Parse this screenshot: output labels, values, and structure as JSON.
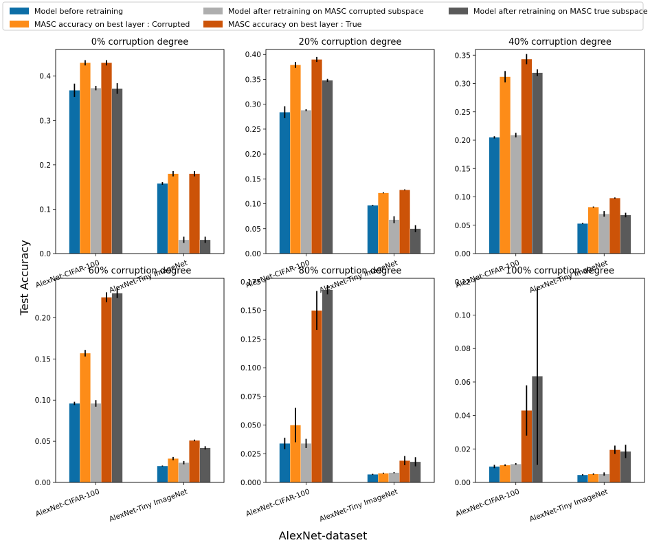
{
  "legend": [
    {
      "label": "Model before retraining",
      "color": "#0c6ea7"
    },
    {
      "label": "MASC accuracy on best layer : Corrupted",
      "color": "#fd8c18"
    },
    {
      "label": "Model after retraining on MASC corrupted subspace",
      "color": "#aeaeae"
    },
    {
      "label": "MASC accuracy on best layer : True",
      "color": "#cc5308"
    },
    {
      "label": "Model after retraining on MASC true subspace",
      "color": "#5a5a5a"
    }
  ],
  "axes": {
    "xlabel": "AlexNet-dataset",
    "ylabel": "Test Accuracy"
  },
  "chart_data": [
    {
      "type": "bar",
      "title": "0% corruption degree",
      "categories": [
        "AlexNet-CIFAR-100",
        "AlexNet-Tiny ImageNet"
      ],
      "ylim": [
        0,
        0.46
      ],
      "yticks": [
        0.0,
        0.1,
        0.2,
        0.3,
        0.4
      ],
      "yticklabels": [
        "0.0",
        "0.1",
        "0.2",
        "0.3",
        "0.4"
      ],
      "series": [
        {
          "name": "Model before retraining",
          "values": [
            0.368,
            0.158
          ],
          "errors": [
            0.015,
            0.003
          ]
        },
        {
          "name": "MASC accuracy on best layer : Corrupted",
          "values": [
            0.43,
            0.18
          ],
          "errors": [
            0.006,
            0.006
          ]
        },
        {
          "name": "Model after retraining on MASC corrupted subspace",
          "values": [
            0.373,
            0.031
          ],
          "errors": [
            0.005,
            0.007
          ]
        },
        {
          "name": "MASC accuracy on best layer : True",
          "values": [
            0.43,
            0.18
          ],
          "errors": [
            0.006,
            0.006
          ]
        },
        {
          "name": "Model after retraining on MASC true subspace",
          "values": [
            0.372,
            0.031
          ],
          "errors": [
            0.012,
            0.007
          ]
        }
      ]
    },
    {
      "type": "bar",
      "title": "20% corruption degree",
      "categories": [
        "AlexNet-CIFAR-100",
        "AlexNet-Tiny ImageNet"
      ],
      "ylim": [
        0,
        0.41
      ],
      "yticks": [
        0.0,
        0.05,
        0.1,
        0.15,
        0.2,
        0.25,
        0.3,
        0.35,
        0.4
      ],
      "yticklabels": [
        "0.00",
        "0.05",
        "0.10",
        "0.15",
        "0.20",
        "0.25",
        "0.30",
        "0.35",
        "0.40"
      ],
      "series": [
        {
          "name": "Model before retraining",
          "values": [
            0.284,
            0.097
          ],
          "errors": [
            0.012,
            0.001
          ]
        },
        {
          "name": "MASC accuracy on best layer : Corrupted",
          "values": [
            0.379,
            0.122
          ],
          "errors": [
            0.006,
            0.001
          ]
        },
        {
          "name": "Model after retraining on MASC corrupted subspace",
          "values": [
            0.288,
            0.068
          ],
          "errors": [
            0.002,
            0.007
          ]
        },
        {
          "name": "MASC accuracy on best layer : True",
          "values": [
            0.39,
            0.128
          ],
          "errors": [
            0.005,
            0.001
          ]
        },
        {
          "name": "Model after retraining on MASC true subspace",
          "values": [
            0.348,
            0.05
          ],
          "errors": [
            0.003,
            0.007
          ]
        }
      ]
    },
    {
      "type": "bar",
      "title": "40% corruption degree",
      "categories": [
        "AlexNet-CIFAR-100",
        "AlexNet-Tiny ImageNet"
      ],
      "ylim": [
        0,
        0.36
      ],
      "yticks": [
        0.0,
        0.05,
        0.1,
        0.15,
        0.2,
        0.25,
        0.3,
        0.35
      ],
      "yticklabels": [
        "0.00",
        "0.05",
        "0.10",
        "0.15",
        "0.20",
        "0.25",
        "0.30",
        "0.35"
      ],
      "series": [
        {
          "name": "Model before retraining",
          "values": [
            0.205,
            0.053
          ],
          "errors": [
            0.002,
            0.001
          ]
        },
        {
          "name": "MASC accuracy on best layer : Corrupted",
          "values": [
            0.312,
            0.082
          ],
          "errors": [
            0.01,
            0.001
          ]
        },
        {
          "name": "Model after retraining on MASC corrupted subspace",
          "values": [
            0.209,
            0.07
          ],
          "errors": [
            0.004,
            0.005
          ]
        },
        {
          "name": "MASC accuracy on best layer : True",
          "values": [
            0.343,
            0.098
          ],
          "errors": [
            0.009,
            0.001
          ]
        },
        {
          "name": "Model after retraining on MASC true subspace",
          "values": [
            0.319,
            0.068
          ],
          "errors": [
            0.006,
            0.004
          ]
        }
      ]
    },
    {
      "type": "bar",
      "title": "60% corruption degree",
      "categories": [
        "AlexNet-CIFAR-100",
        "AlexNet-Tiny ImageNet"
      ],
      "ylim": [
        0,
        0.248
      ],
      "yticks": [
        0.0,
        0.05,
        0.1,
        0.15,
        0.2
      ],
      "yticklabels": [
        "0.00",
        "0.05",
        "0.10",
        "0.15",
        "0.20"
      ],
      "series": [
        {
          "name": "Model before retraining",
          "values": [
            0.096,
            0.02
          ],
          "errors": [
            0.002,
            0.0005
          ]
        },
        {
          "name": "MASC accuracy on best layer : Corrupted",
          "values": [
            0.157,
            0.029
          ],
          "errors": [
            0.004,
            0.002
          ]
        },
        {
          "name": "Model after retraining on MASC corrupted subspace",
          "values": [
            0.096,
            0.024
          ],
          "errors": [
            0.004,
            0.002
          ]
        },
        {
          "name": "MASC accuracy on best layer : True",
          "values": [
            0.225,
            0.051
          ],
          "errors": [
            0.006,
            0.001
          ]
        },
        {
          "name": "Model after retraining on MASC true subspace",
          "values": [
            0.23,
            0.042
          ],
          "errors": [
            0.006,
            0.002
          ]
        }
      ]
    },
    {
      "type": "bar",
      "title": "80% corruption degree",
      "categories": [
        "AlexNet-CIFAR-100",
        "AlexNet-Tiny ImageNet"
      ],
      "ylim": [
        0,
        0.178
      ],
      "yticks": [
        0.0,
        0.025,
        0.05,
        0.075,
        0.1,
        0.125,
        0.15,
        0.175
      ],
      "yticklabels": [
        "0.000",
        "0.025",
        "0.050",
        "0.075",
        "0.100",
        "0.125",
        "0.150",
        "0.175"
      ],
      "series": [
        {
          "name": "Model before retraining",
          "values": [
            0.034,
            0.007
          ],
          "errors": [
            0.005,
            0.0005
          ]
        },
        {
          "name": "MASC accuracy on best layer : Corrupted",
          "values": [
            0.05,
            0.008
          ],
          "errors": [
            0.015,
            0.0005
          ]
        },
        {
          "name": "Model after retraining on MASC corrupted subspace",
          "values": [
            0.034,
            0.0085
          ],
          "errors": [
            0.004,
            0.0005
          ]
        },
        {
          "name": "MASC accuracy on best layer : True",
          "values": [
            0.15,
            0.019
          ],
          "errors": [
            0.017,
            0.004
          ]
        },
        {
          "name": "Model after retraining on MASC true subspace",
          "values": [
            0.168,
            0.018
          ],
          "errors": [
            0.004,
            0.004
          ]
        }
      ]
    },
    {
      "type": "bar",
      "title": "100% corruption degree",
      "categories": [
        "AlexNet-CIFAR-100",
        "AlexNet-Tiny ImageNet"
      ],
      "ylim": [
        0,
        0.122
      ],
      "yticks": [
        0.0,
        0.02,
        0.04,
        0.06,
        0.08,
        0.1,
        0.12
      ],
      "yticklabels": [
        "0.00",
        "0.02",
        "0.04",
        "0.06",
        "0.08",
        "0.10",
        "0.12"
      ],
      "series": [
        {
          "name": "Model before retraining",
          "values": [
            0.0095,
            0.0045
          ],
          "errors": [
            0.001,
            0.0004
          ]
        },
        {
          "name": "MASC accuracy on best layer : Corrupted",
          "values": [
            0.0103,
            0.005
          ],
          "errors": [
            0.0005,
            0.0004
          ]
        },
        {
          "name": "Model after retraining on MASC corrupted subspace",
          "values": [
            0.011,
            0.005
          ],
          "errors": [
            0.0005,
            0.001
          ]
        },
        {
          "name": "MASC accuracy on best layer : True",
          "values": [
            0.043,
            0.0195
          ],
          "errors": [
            0.015,
            0.0025
          ]
        },
        {
          "name": "Model after retraining on MASC true subspace",
          "values": [
            0.0635,
            0.0185
          ],
          "errors": [
            0.053,
            0.004
          ]
        }
      ]
    }
  ]
}
